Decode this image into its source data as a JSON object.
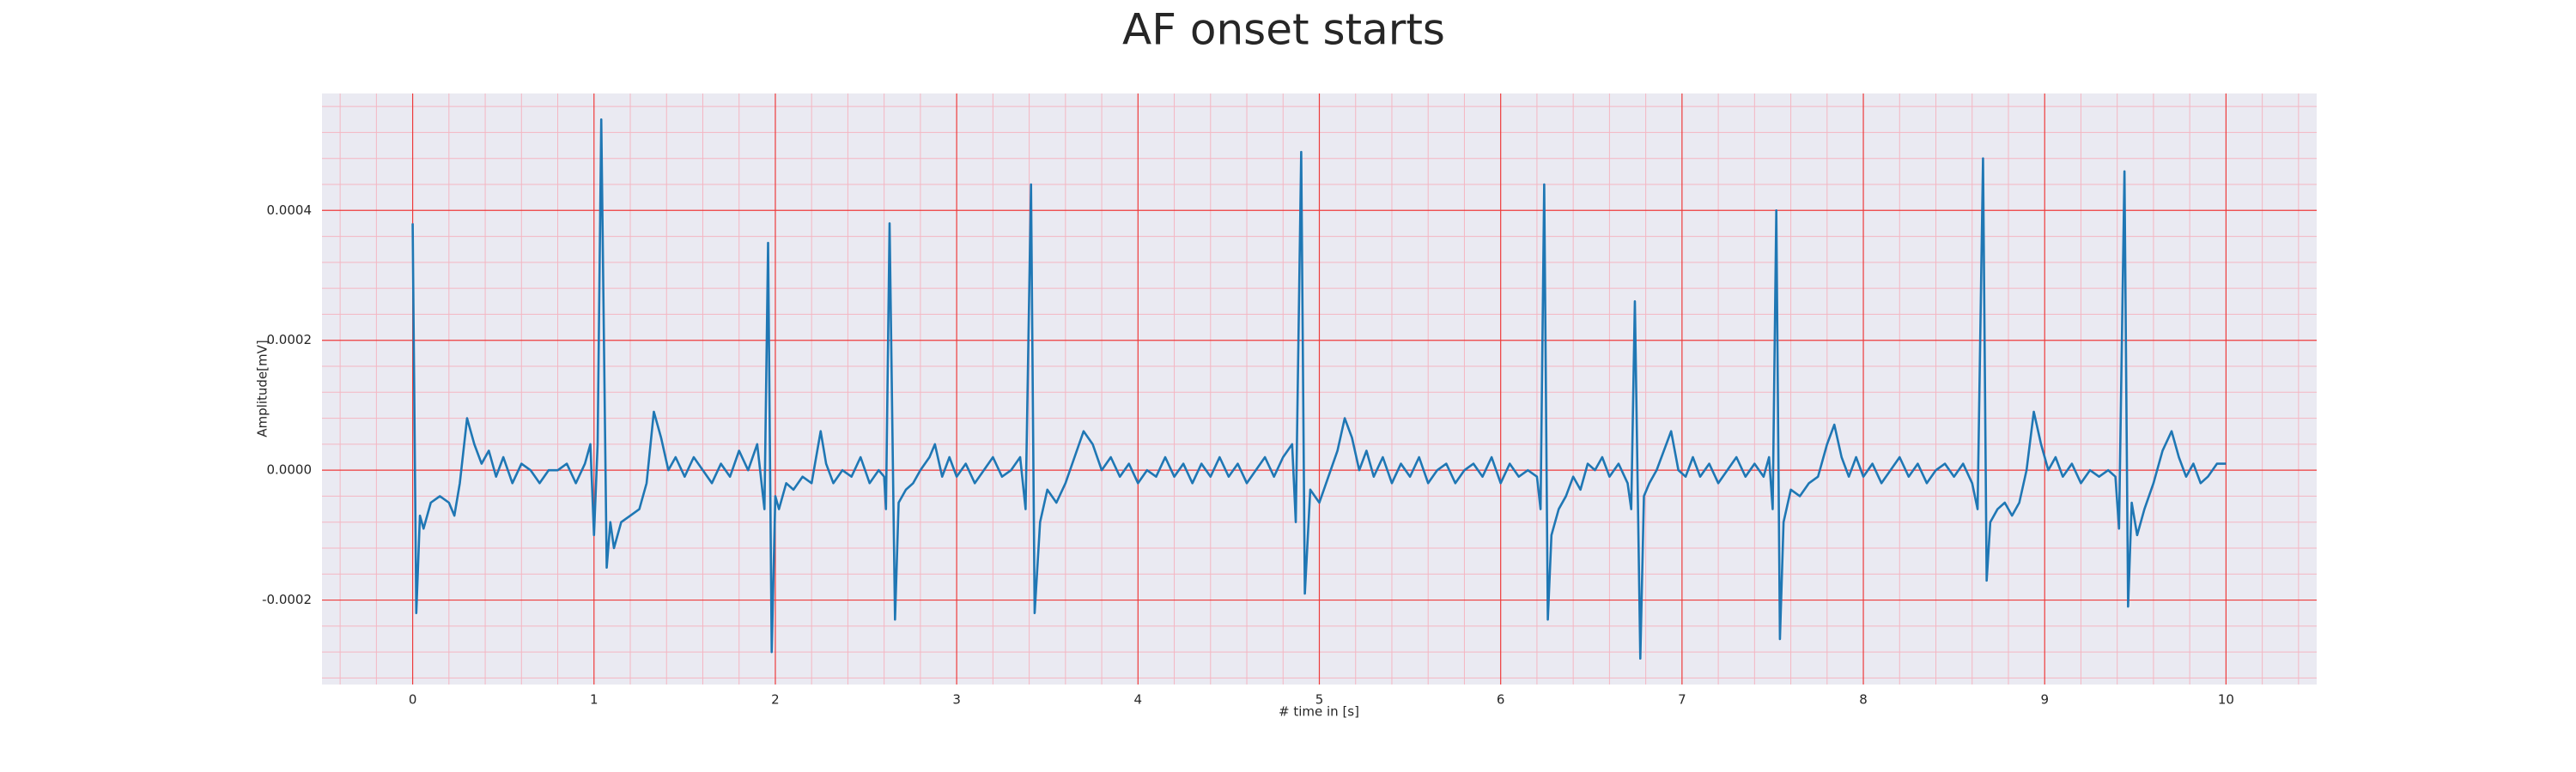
{
  "chart_data": {
    "type": "line",
    "title": "AF onset starts",
    "x_label": "# time in [s]",
    "y_label": "Amplitude[mV]",
    "color": "#1f77b4",
    "grid": true,
    "minor_grid": true,
    "xlim": [
      -0.5,
      10.5
    ],
    "ylim": [
      -0.00033,
      0.00058
    ],
    "xticks": [
      0,
      1,
      2,
      3,
      4,
      5,
      6,
      7,
      8,
      9,
      10
    ],
    "yticks": [
      {
        "value": -0.0002,
        "label": "-0.0002"
      },
      {
        "value": 0,
        "label": "0.0000"
      },
      {
        "value": 0.0002,
        "label": "0.0002"
      },
      {
        "value": 0.0004,
        "label": "0.0004"
      }
    ],
    "x": [
      0,
      0.02,
      0.04,
      0.06,
      0.1,
      0.15,
      0.2,
      0.23,
      0.26,
      0.3,
      0.34,
      0.38,
      0.42,
      0.46,
      0.5,
      0.55,
      0.6,
      0.65,
      0.7,
      0.75,
      0.8,
      0.85,
      0.9,
      0.95,
      0.98,
      1.0,
      1.02,
      1.04,
      1.07,
      1.09,
      1.11,
      1.15,
      1.2,
      1.25,
      1.29,
      1.33,
      1.37,
      1.41,
      1.45,
      1.5,
      1.55,
      1.6,
      1.65,
      1.7,
      1.75,
      1.8,
      1.85,
      1.9,
      1.94,
      1.96,
      1.98,
      2.0,
      2.02,
      2.06,
      2.1,
      2.15,
      2.2,
      2.25,
      2.28,
      2.32,
      2.37,
      2.42,
      2.47,
      2.52,
      2.57,
      2.6,
      2.61,
      2.63,
      2.66,
      2.68,
      2.72,
      2.76,
      2.8,
      2.85,
      2.88,
      2.92,
      2.96,
      3.0,
      3.05,
      3.1,
      3.15,
      3.2,
      3.25,
      3.3,
      3.35,
      3.38,
      3.41,
      3.43,
      3.46,
      3.5,
      3.55,
      3.6,
      3.65,
      3.7,
      3.75,
      3.8,
      3.85,
      3.9,
      3.95,
      4.0,
      4.05,
      4.1,
      4.15,
      4.2,
      4.25,
      4.3,
      4.35,
      4.4,
      4.45,
      4.5,
      4.55,
      4.6,
      4.65,
      4.7,
      4.75,
      4.8,
      4.85,
      4.87,
      4.9,
      4.92,
      4.95,
      5.0,
      5.05,
      5.1,
      5.14,
      5.18,
      5.22,
      5.26,
      5.3,
      5.35,
      5.4,
      5.45,
      5.5,
      5.55,
      5.6,
      5.65,
      5.7,
      5.75,
      5.8,
      5.85,
      5.9,
      5.95,
      6.0,
      6.05,
      6.1,
      6.15,
      6.2,
      6.22,
      6.24,
      6.26,
      6.28,
      6.32,
      6.36,
      6.4,
      6.44,
      6.48,
      6.52,
      6.56,
      6.6,
      6.65,
      6.7,
      6.72,
      6.74,
      6.77,
      6.79,
      6.82,
      6.86,
      6.9,
      6.94,
      6.98,
      7.02,
      7.06,
      7.1,
      7.15,
      7.2,
      7.25,
      7.3,
      7.35,
      7.4,
      7.45,
      7.48,
      7.5,
      7.52,
      7.54,
      7.56,
      7.6,
      7.65,
      7.7,
      7.75,
      7.8,
      7.84,
      7.88,
      7.92,
      7.96,
      8.0,
      8.05,
      8.1,
      8.15,
      8.2,
      8.25,
      8.3,
      8.35,
      8.4,
      8.45,
      8.5,
      8.55,
      8.6,
      8.63,
      8.66,
      8.68,
      8.7,
      8.74,
      8.78,
      8.82,
      8.86,
      8.9,
      8.94,
      8.98,
      9.02,
      9.06,
      9.1,
      9.15,
      9.2,
      9.25,
      9.3,
      9.35,
      9.39,
      9.41,
      9.44,
      9.46,
      9.48,
      9.51,
      9.55,
      9.6,
      9.65,
      9.7,
      9.74,
      9.78,
      9.82,
      9.86,
      9.9,
      9.95,
      10.0
    ],
    "values": [
      0.00038,
      -0.00022,
      -7e-05,
      -9e-05,
      -5e-05,
      -4e-05,
      -5e-05,
      -7e-05,
      -2e-05,
      8e-05,
      4e-05,
      1e-05,
      3e-05,
      -1e-05,
      2e-05,
      -2e-05,
      1e-05,
      0.0,
      -2e-05,
      0.0,
      0.0,
      1e-05,
      -2e-05,
      1e-05,
      4e-05,
      -0.0001,
      4e-05,
      0.00054,
      -0.00015,
      -8e-05,
      -0.00012,
      -8e-05,
      -7e-05,
      -6e-05,
      -2e-05,
      9e-05,
      5e-05,
      0.0,
      2e-05,
      -1e-05,
      2e-05,
      0.0,
      -2e-05,
      1e-05,
      -1e-05,
      3e-05,
      0.0,
      4e-05,
      -6e-05,
      0.00035,
      -0.00028,
      -4e-05,
      -6e-05,
      -2e-05,
      -3e-05,
      -1e-05,
      -2e-05,
      6e-05,
      1e-05,
      -2e-05,
      0.0,
      -1e-05,
      2e-05,
      -2e-05,
      0.0,
      -1e-05,
      -6e-05,
      0.00038,
      -0.00023,
      -5e-05,
      -3e-05,
      -2e-05,
      0.0,
      2e-05,
      4e-05,
      -1e-05,
      2e-05,
      -1e-05,
      1e-05,
      -2e-05,
      0.0,
      2e-05,
      -1e-05,
      0.0,
      2e-05,
      -6e-05,
      0.00044,
      -0.00022,
      -8e-05,
      -3e-05,
      -5e-05,
      -2e-05,
      2e-05,
      6e-05,
      4e-05,
      0.0,
      2e-05,
      -1e-05,
      1e-05,
      -2e-05,
      0.0,
      -1e-05,
      2e-05,
      -1e-05,
      1e-05,
      -2e-05,
      1e-05,
      -1e-05,
      2e-05,
      -1e-05,
      1e-05,
      -2e-05,
      0.0,
      2e-05,
      -1e-05,
      2e-05,
      4e-05,
      -8e-05,
      0.00049,
      -0.00019,
      -3e-05,
      -5e-05,
      -1e-05,
      3e-05,
      8e-05,
      5e-05,
      0.0,
      3e-05,
      -1e-05,
      2e-05,
      -2e-05,
      1e-05,
      -1e-05,
      2e-05,
      -2e-05,
      0.0,
      1e-05,
      -2e-05,
      0.0,
      1e-05,
      -1e-05,
      2e-05,
      -2e-05,
      1e-05,
      -1e-05,
      0.0,
      -1e-05,
      -6e-05,
      0.00044,
      -0.00023,
      -0.0001,
      -6e-05,
      -4e-05,
      -1e-05,
      -3e-05,
      1e-05,
      0.0,
      2e-05,
      -1e-05,
      1e-05,
      -2e-05,
      -6e-05,
      0.00026,
      -0.00029,
      -4e-05,
      -2e-05,
      0.0,
      3e-05,
      6e-05,
      0.0,
      -1e-05,
      2e-05,
      -1e-05,
      1e-05,
      -2e-05,
      0.0,
      2e-05,
      -1e-05,
      1e-05,
      -1e-05,
      2e-05,
      -6e-05,
      0.0004,
      -0.00026,
      -8e-05,
      -3e-05,
      -4e-05,
      -2e-05,
      -1e-05,
      4e-05,
      7e-05,
      2e-05,
      -1e-05,
      2e-05,
      -1e-05,
      1e-05,
      -2e-05,
      0.0,
      2e-05,
      -1e-05,
      1e-05,
      -2e-05,
      0.0,
      1e-05,
      -1e-05,
      1e-05,
      -2e-05,
      -6e-05,
      0.00048,
      -0.00017,
      -8e-05,
      -6e-05,
      -5e-05,
      -7e-05,
      -5e-05,
      0.0,
      9e-05,
      4e-05,
      0.0,
      2e-05,
      -1e-05,
      1e-05,
      -2e-05,
      0.0,
      -1e-05,
      0.0,
      -1e-05,
      -9e-05,
      0.00046,
      -0.00021,
      -5e-05,
      -0.0001,
      -6e-05,
      -2e-05,
      3e-05,
      6e-05,
      2e-05,
      -1e-05,
      1e-05,
      -2e-05,
      -1e-05,
      1e-05,
      1e-05
    ]
  }
}
